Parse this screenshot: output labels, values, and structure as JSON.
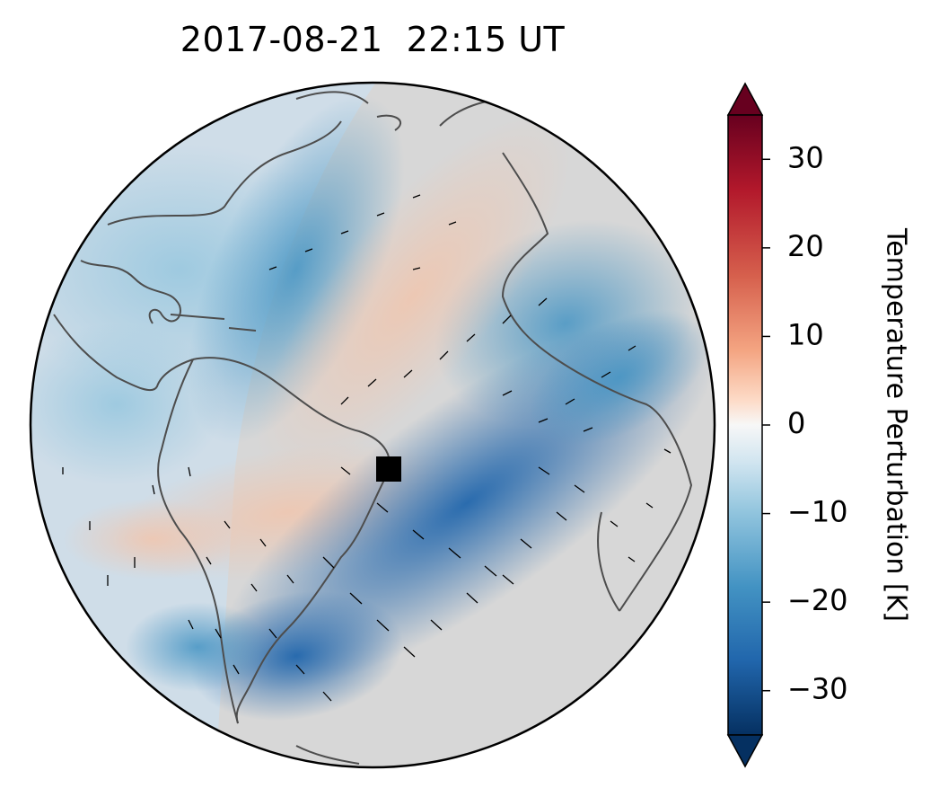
{
  "title": {
    "date": "2017-08-21",
    "time": "22:15 UT"
  },
  "colorbar": {
    "label": "Temperature Perturbation [K]",
    "ticks": [
      "30",
      "20",
      "10",
      "0",
      "−10",
      "−20",
      "−30"
    ],
    "tick_values": [
      30,
      20,
      10,
      0,
      -10,
      -20,
      -30
    ],
    "range": [
      -35,
      35
    ],
    "colormap": "RdBu_r",
    "extend": "both",
    "colors": {
      "top_arrow": "#67001f",
      "bottom_arrow": "#053061"
    }
  },
  "map": {
    "projection": "orthographic",
    "region": "Atlantic Ocean, Americas, Africa",
    "coastline_color": "#4d4d4d",
    "background_color": "#d6d6d6",
    "marker": {
      "shape": "square",
      "color": "#000000"
    }
  }
}
